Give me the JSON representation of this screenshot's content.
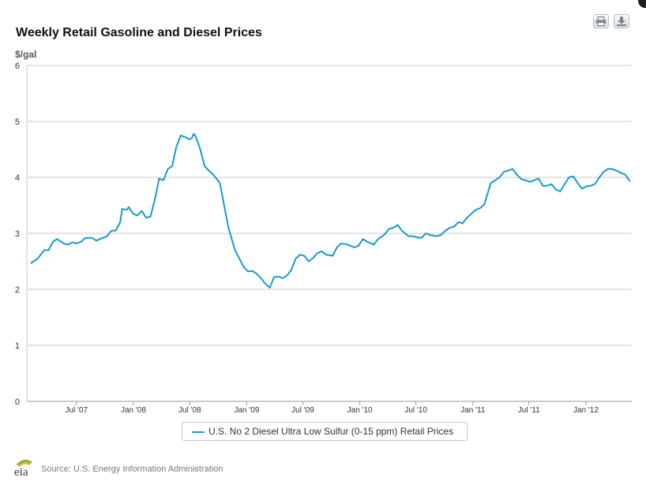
{
  "toolbar": {
    "print_icon": "printer-icon",
    "download_icon": "download-icon"
  },
  "chart_data": {
    "type": "line",
    "title": "Weekly Retail Gasoline and Diesel Prices",
    "ylabel": "$/gal",
    "ylim": [
      0,
      6
    ],
    "y_ticks": [
      "0",
      "1",
      "2",
      "3",
      "4",
      "5",
      "6"
    ],
    "xlim": [
      "2007-01-22",
      "2012-05-28"
    ],
    "x_ticks": [
      {
        "date": "2007-07-01",
        "label": "Jul '07"
      },
      {
        "date": "2008-01-01",
        "label": "Jan '08"
      },
      {
        "date": "2008-07-01",
        "label": "Jul '08"
      },
      {
        "date": "2009-01-01",
        "label": "Jan '09"
      },
      {
        "date": "2009-07-01",
        "label": "Jul '09"
      },
      {
        "date": "2010-01-01",
        "label": "Jan '10"
      },
      {
        "date": "2010-07-01",
        "label": "Jul '10"
      },
      {
        "date": "2011-01-01",
        "label": "Jan '11"
      },
      {
        "date": "2011-07-01",
        "label": "Jul '11"
      },
      {
        "date": "2012-01-01",
        "label": "Jan '12"
      }
    ],
    "grid": true,
    "legend_position": "bottom",
    "series": [
      {
        "name": "U.S. No 2 Diesel Ultra Low Sulfur (0-15 ppm) Retail Prices",
        "color": "#1a9ac9",
        "points": [
          [
            "2007-02-05",
            2.47
          ],
          [
            "2007-02-26",
            2.55
          ],
          [
            "2007-03-19",
            2.7
          ],
          [
            "2007-04-02",
            2.7
          ],
          [
            "2007-04-16",
            2.85
          ],
          [
            "2007-04-30",
            2.9
          ],
          [
            "2007-05-21",
            2.82
          ],
          [
            "2007-06-04",
            2.8
          ],
          [
            "2007-06-18",
            2.84
          ],
          [
            "2007-07-02",
            2.82
          ],
          [
            "2007-07-16",
            2.85
          ],
          [
            "2007-07-30",
            2.92
          ],
          [
            "2007-08-20",
            2.92
          ],
          [
            "2007-09-03",
            2.87
          ],
          [
            "2007-09-24",
            2.92
          ],
          [
            "2007-10-08",
            2.95
          ],
          [
            "2007-10-22",
            3.05
          ],
          [
            "2007-11-05",
            3.05
          ],
          [
            "2007-11-19",
            3.2
          ],
          [
            "2007-11-26",
            3.44
          ],
          [
            "2007-12-10",
            3.42
          ],
          [
            "2007-12-17",
            3.47
          ],
          [
            "2007-12-31",
            3.35
          ],
          [
            "2008-01-14",
            3.32
          ],
          [
            "2008-01-28",
            3.4
          ],
          [
            "2008-02-11",
            3.28
          ],
          [
            "2008-02-25",
            3.3
          ],
          [
            "2008-03-10",
            3.6
          ],
          [
            "2008-03-24",
            3.98
          ],
          [
            "2008-04-07",
            3.95
          ],
          [
            "2008-04-21",
            4.15
          ],
          [
            "2008-05-05",
            4.2
          ],
          [
            "2008-05-19",
            4.55
          ],
          [
            "2008-06-02",
            4.75
          ],
          [
            "2008-06-16",
            4.72
          ],
          [
            "2008-06-30",
            4.68
          ],
          [
            "2008-07-07",
            4.7
          ],
          [
            "2008-07-14",
            4.78
          ],
          [
            "2008-07-21",
            4.72
          ],
          [
            "2008-08-04",
            4.5
          ],
          [
            "2008-08-18",
            4.2
          ],
          [
            "2008-09-01",
            4.12
          ],
          [
            "2008-09-15",
            4.05
          ],
          [
            "2008-10-06",
            3.9
          ],
          [
            "2008-10-20",
            3.5
          ],
          [
            "2008-11-03",
            3.1
          ],
          [
            "2008-11-24",
            2.7
          ],
          [
            "2008-12-08",
            2.55
          ],
          [
            "2008-12-22",
            2.4
          ],
          [
            "2009-01-05",
            2.32
          ],
          [
            "2009-01-19",
            2.33
          ],
          [
            "2009-02-02",
            2.28
          ],
          [
            "2009-02-16",
            2.2
          ],
          [
            "2009-03-02",
            2.1
          ],
          [
            "2009-03-16",
            2.03
          ],
          [
            "2009-03-30",
            2.22
          ],
          [
            "2009-04-13",
            2.23
          ],
          [
            "2009-04-27",
            2.2
          ],
          [
            "2009-05-11",
            2.25
          ],
          [
            "2009-05-25",
            2.35
          ],
          [
            "2009-06-08",
            2.55
          ],
          [
            "2009-06-22",
            2.62
          ],
          [
            "2009-07-06",
            2.6
          ],
          [
            "2009-07-20",
            2.5
          ],
          [
            "2009-08-03",
            2.56
          ],
          [
            "2009-08-17",
            2.65
          ],
          [
            "2009-08-31",
            2.68
          ],
          [
            "2009-09-14",
            2.62
          ],
          [
            "2009-10-05",
            2.6
          ],
          [
            "2009-10-19",
            2.75
          ],
          [
            "2009-11-02",
            2.82
          ],
          [
            "2009-11-23",
            2.8
          ],
          [
            "2009-12-14",
            2.75
          ],
          [
            "2009-12-28",
            2.78
          ],
          [
            "2010-01-11",
            2.9
          ],
          [
            "2010-01-25",
            2.85
          ],
          [
            "2010-02-15",
            2.8
          ],
          [
            "2010-03-01",
            2.9
          ],
          [
            "2010-03-22",
            2.98
          ],
          [
            "2010-04-05",
            3.08
          ],
          [
            "2010-04-19",
            3.1
          ],
          [
            "2010-05-03",
            3.15
          ],
          [
            "2010-05-17",
            3.05
          ],
          [
            "2010-06-07",
            2.95
          ],
          [
            "2010-06-21",
            2.95
          ],
          [
            "2010-07-05",
            2.93
          ],
          [
            "2010-07-19",
            2.92
          ],
          [
            "2010-08-02",
            3.0
          ],
          [
            "2010-08-16",
            2.97
          ],
          [
            "2010-09-06",
            2.95
          ],
          [
            "2010-09-20",
            2.97
          ],
          [
            "2010-10-04",
            3.05
          ],
          [
            "2010-10-18",
            3.1
          ],
          [
            "2010-11-01",
            3.12
          ],
          [
            "2010-11-15",
            3.2
          ],
          [
            "2010-11-29",
            3.18
          ],
          [
            "2010-12-13",
            3.28
          ],
          [
            "2010-12-27",
            3.35
          ],
          [
            "2011-01-10",
            3.42
          ],
          [
            "2011-01-24",
            3.45
          ],
          [
            "2011-02-07",
            3.52
          ],
          [
            "2011-02-28",
            3.9
          ],
          [
            "2011-03-14",
            3.95
          ],
          [
            "2011-03-28",
            4.0
          ],
          [
            "2011-04-11",
            4.1
          ],
          [
            "2011-04-25",
            4.12
          ],
          [
            "2011-05-09",
            4.15
          ],
          [
            "2011-05-23",
            4.05
          ],
          [
            "2011-06-06",
            3.97
          ],
          [
            "2011-06-20",
            3.95
          ],
          [
            "2011-07-04",
            3.92
          ],
          [
            "2011-07-18",
            3.95
          ],
          [
            "2011-08-01",
            3.98
          ],
          [
            "2011-08-15",
            3.85
          ],
          [
            "2011-08-29",
            3.85
          ],
          [
            "2011-09-12",
            3.88
          ],
          [
            "2011-09-26",
            3.78
          ],
          [
            "2011-10-10",
            3.75
          ],
          [
            "2011-10-24",
            3.88
          ],
          [
            "2011-11-07",
            4.0
          ],
          [
            "2011-11-21",
            4.02
          ],
          [
            "2011-12-05",
            3.9
          ],
          [
            "2011-12-19",
            3.8
          ],
          [
            "2012-01-02",
            3.84
          ],
          [
            "2012-01-16",
            3.85
          ],
          [
            "2012-01-30",
            3.88
          ],
          [
            "2012-02-13",
            4.0
          ],
          [
            "2012-02-27",
            4.1
          ],
          [
            "2012-03-12",
            4.15
          ],
          [
            "2012-03-26",
            4.15
          ],
          [
            "2012-04-09",
            4.12
          ],
          [
            "2012-04-23",
            4.08
          ],
          [
            "2012-05-07",
            4.05
          ],
          [
            "2012-05-21",
            3.94
          ]
        ]
      }
    ]
  },
  "footer": {
    "logo_text": "eia",
    "source": "Source: U.S. Energy Information Administration"
  }
}
